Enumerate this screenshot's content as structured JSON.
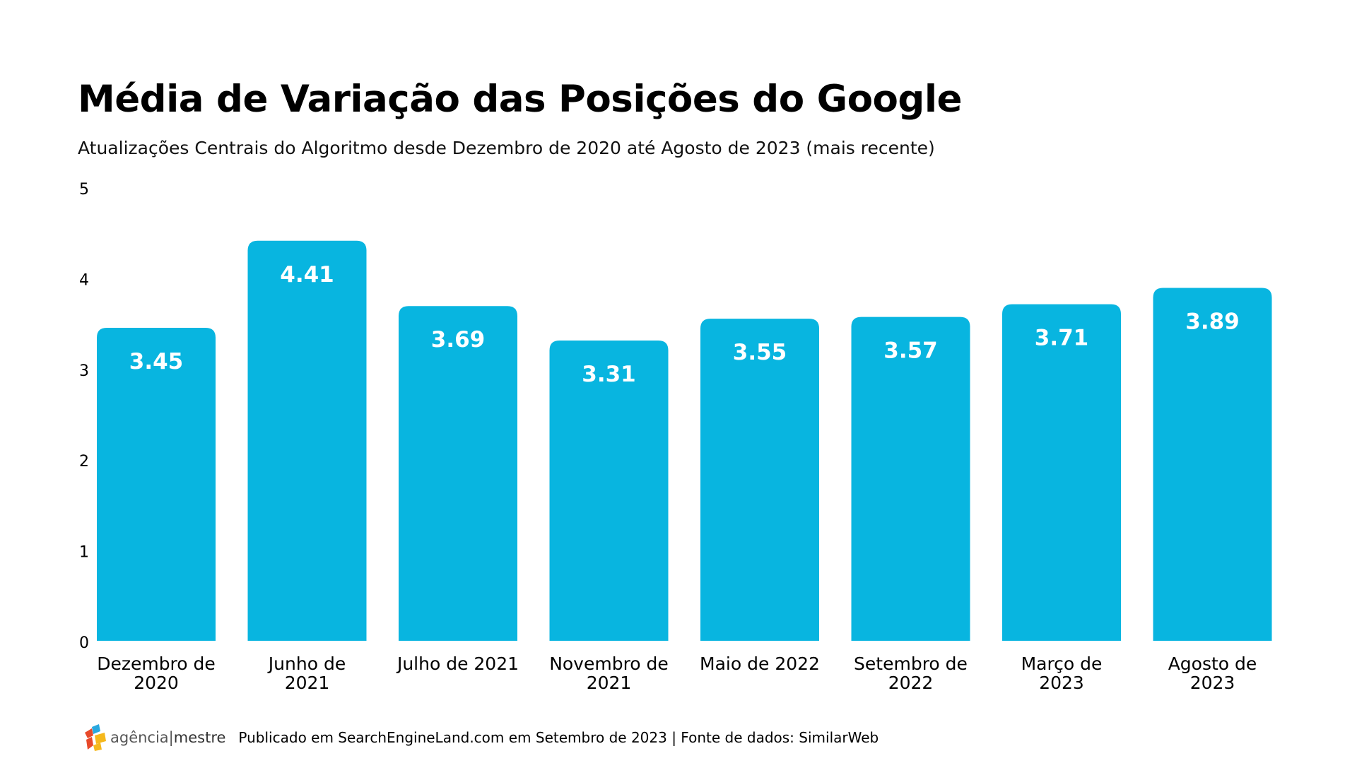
{
  "header": {
    "title": "Média de Variação das Posições do Google",
    "subtitle": "Atualizações Centrais do Algoritmo desde Dezembro de 2020 até Agosto de 2023 (mais recente)"
  },
  "footer": {
    "logo_icon": "agencia-mestre-logo-icon",
    "logo_text_1": "agência|",
    "logo_text_2": "mestre",
    "credit": "Publicado em SearchEngineLand.com em Setembro de 2023 | Fonte de dados: SimilarWeb"
  },
  "colors": {
    "bar": "#08b5e0",
    "bar_label": "#ffffff",
    "text": "#000000"
  },
  "chart_data": {
    "type": "bar",
    "title": "Média de Variação das Posições do Google",
    "subtitle": "Atualizações Centrais do Algoritmo desde Dezembro de 2020 até Agosto de 2023 (mais recente)",
    "xlabel": "",
    "ylabel": "",
    "ylim": [
      0,
      5
    ],
    "yticks": [
      0,
      1,
      2,
      3,
      4,
      5
    ],
    "grid": false,
    "legend": "none",
    "categories": [
      [
        "Dezembro de",
        "2020"
      ],
      [
        "Junho de",
        "2021"
      ],
      [
        "Julho de 2021"
      ],
      [
        "Novembro de",
        "2021"
      ],
      [
        "Maio de 2022"
      ],
      [
        "Setembro de",
        "2022"
      ],
      [
        "Março de",
        "2023"
      ],
      [
        "Agosto de",
        "2023"
      ]
    ],
    "values": [
      3.45,
      4.41,
      3.69,
      3.31,
      3.55,
      3.57,
      3.71,
      3.89
    ],
    "value_labels": [
      "3.45",
      "4.41",
      "3.69",
      "3.31",
      "3.55",
      "3.57",
      "3.71",
      "3.89"
    ]
  }
}
